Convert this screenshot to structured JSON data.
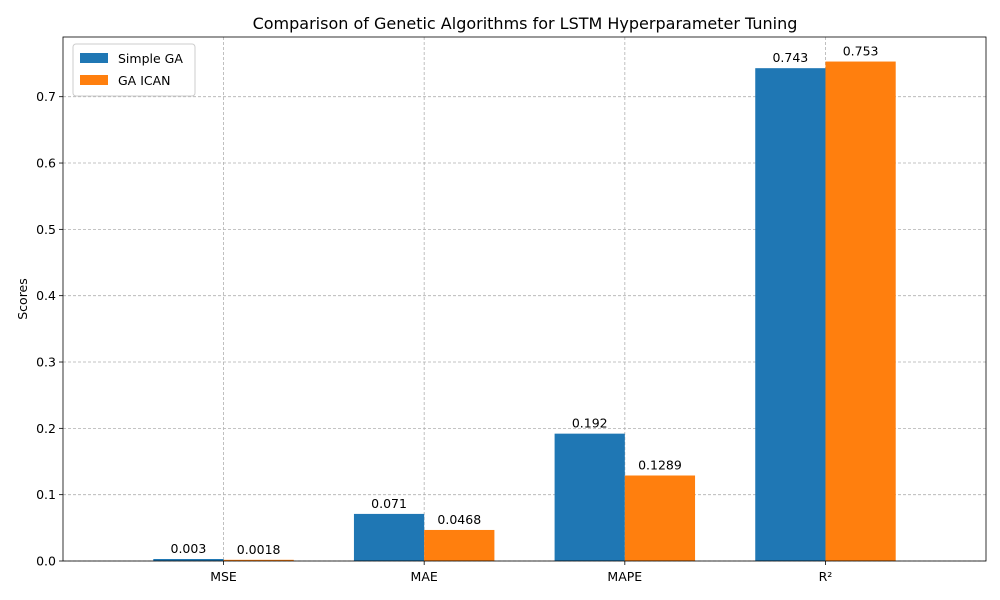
{
  "chart_data": {
    "type": "bar",
    "title": "Comparison of Genetic Algorithms for LSTM Hyperparameter Tuning",
    "xlabel": "",
    "ylabel": "Scores",
    "categories": [
      "MSE",
      "MAE",
      "MAPE",
      "R²"
    ],
    "series": [
      {
        "name": "Simple GA",
        "color": "#1f77b4",
        "values": [
          0.003,
          0.071,
          0.192,
          0.743
        ],
        "labels": [
          "0.003",
          "0.071",
          "0.192",
          "0.743"
        ]
      },
      {
        "name": "GA ICAN",
        "color": "#ff7f0e",
        "values": [
          0.0018,
          0.0468,
          0.1289,
          0.753
        ],
        "labels": [
          "0.0018",
          "0.0468",
          "0.1289",
          "0.753"
        ]
      }
    ],
    "ylim": [
      0,
      0.79
    ],
    "yticks": [
      "0.0",
      "0.1",
      "0.2",
      "0.3",
      "0.4",
      "0.5",
      "0.6",
      "0.7"
    ],
    "grid": true,
    "legend_position": "top-left"
  }
}
